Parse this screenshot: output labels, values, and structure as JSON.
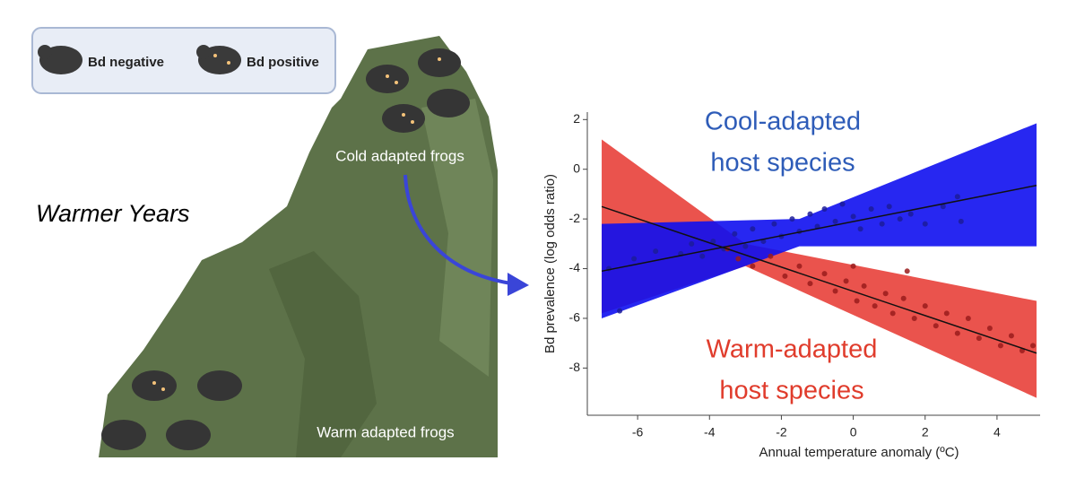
{
  "illustration": {
    "legend": [
      "Bd negative",
      "Bd positive"
    ],
    "title": "Warmer Years",
    "cold_label": "Cold adapted frogs",
    "warm_label": "Warm adapted frogs"
  },
  "chart_data": {
    "type": "scatter",
    "xlabel": "Annual temperature anomaly (ºC)",
    "ylabel": "Bd prevalence (log odds ratio)",
    "xlim": [
      -7.4,
      5.2
    ],
    "ylim": [
      -9.9,
      2.3
    ],
    "xticks": [
      -6,
      -4,
      -2,
      0,
      2,
      4
    ],
    "yticks": [
      2,
      0,
      -2,
      -4,
      -6,
      -8
    ],
    "series": [
      {
        "labels": [
          "Cool-adapted",
          "host species"
        ],
        "color": "#2e5cb8",
        "band_color": "#1010f0",
        "point_color": "#1c1c9a",
        "x": [
          -6.8,
          -6.1,
          -5.5,
          -4.8,
          -4.5,
          -4.2,
          -3.9,
          -3.6,
          -3.3,
          -3.0,
          -2.8,
          -2.5,
          -2.2,
          -2.0,
          -1.7,
          -1.5,
          -1.2,
          -1.0,
          -0.8,
          -0.5,
          -0.3,
          0,
          0.2,
          0.5,
          0.8,
          1.0,
          1.3,
          1.6,
          2.0,
          2.5,
          3.0,
          -6.5,
          2.9
        ],
        "values": [
          -4.0,
          -3.6,
          -3.3,
          -3.4,
          -3.0,
          -3.5,
          -2.9,
          -3.2,
          -2.6,
          -3.1,
          -2.4,
          -2.9,
          -2.2,
          -2.7,
          -2.0,
          -2.5,
          -1.8,
          -2.3,
          -1.6,
          -2.1,
          -1.4,
          -1.9,
          -2.4,
          -1.6,
          -2.2,
          -1.5,
          -2.0,
          -1.8,
          -2.2,
          -1.5,
          -2.1,
          -5.7,
          -1.1
        ],
        "fit": {
          "x": [
            -7,
            5.1
          ],
          "values": [
            -4.1,
            -0.65
          ]
        },
        "band": {
          "x": [
            -7,
            -1.5,
            5.1
          ],
          "upper": [
            -2.2,
            -2.0,
            1.85
          ],
          "lower": [
            -6.0,
            -3.1,
            -3.1
          ]
        }
      },
      {
        "labels": [
          "Warm-adapted",
          "host species"
        ],
        "color": "#e03c2c",
        "band_color": "#e8403a",
        "point_color": "#9a1c1c",
        "x": [
          -3.2,
          -2.8,
          -2.3,
          -1.9,
          -1.5,
          -1.2,
          -0.8,
          -0.5,
          -0.2,
          0.1,
          0.3,
          0.6,
          0.9,
          1.1,
          1.4,
          1.7,
          2.0,
          2.3,
          2.6,
          2.9,
          3.2,
          3.5,
          3.8,
          4.1,
          4.4,
          4.7,
          5.0,
          -3.5,
          0.0,
          1.5
        ],
        "values": [
          -3.6,
          -3.9,
          -3.5,
          -4.3,
          -3.9,
          -4.6,
          -4.2,
          -4.9,
          -4.5,
          -5.3,
          -4.7,
          -5.5,
          -5.0,
          -5.8,
          -5.2,
          -6.0,
          -5.5,
          -6.3,
          -5.8,
          -6.6,
          -6.0,
          -6.8,
          -6.4,
          -7.1,
          -6.7,
          -7.3,
          -7.1,
          -3.2,
          -3.9,
          -4.1
        ],
        "fit": {
          "x": [
            -7,
            5.1
          ],
          "values": [
            -1.5,
            -7.4
          ]
        },
        "band": {
          "x": [
            -7,
            -3,
            5.1
          ],
          "upper": [
            1.2,
            -3.0,
            -5.3
          ],
          "lower": [
            -5.8,
            -3.9,
            -9.2
          ]
        }
      }
    ]
  }
}
